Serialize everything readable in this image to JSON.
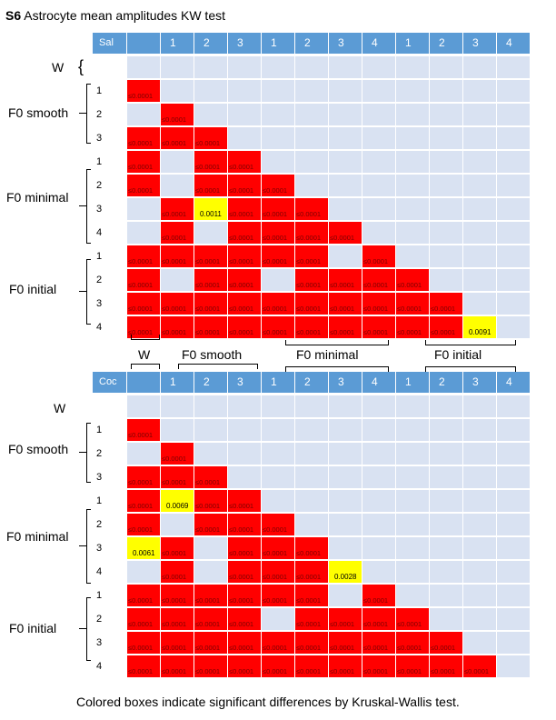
{
  "title": {
    "bold": "S6",
    "text": "Astrocyte mean amplitudes KW test"
  },
  "footnote": "Colored boxes indicate significant differences by Kruskal-Wallis test.",
  "group_labels": {
    "w": "W",
    "smooth": "F0 smooth",
    "minimal": "F0 minimal",
    "initial": "F0 initial"
  },
  "column_group_labels": {
    "w": "W",
    "smooth": "F0 smooth",
    "minimal": "F0 minimal",
    "initial": "F0 initial"
  },
  "colors": {
    "header": "#5b9bd5",
    "empty": "#d9e2f2",
    "significant": "#ff0000",
    "trend": "#ffff00"
  },
  "matrices": [
    {
      "corner": "Sal",
      "headers": [
        "",
        "1",
        "2",
        "3",
        "1",
        "2",
        "3",
        "4",
        "1",
        "2",
        "3",
        "4"
      ],
      "rows": [
        {
          "label": "",
          "cells": [
            "",
            "",
            "",
            "",
            "",
            "",
            "",
            "",
            "",
            "",
            "",
            ""
          ]
        },
        {
          "label": "1",
          "cells": [
            "R",
            "",
            "",
            "",
            "",
            "",
            "",
            "",
            "",
            "",
            "",
            ""
          ]
        },
        {
          "label": "2",
          "cells": [
            "",
            "R",
            "",
            "",
            "",
            "",
            "",
            "",
            "",
            "",
            "",
            ""
          ]
        },
        {
          "label": "3",
          "cells": [
            "R",
            "R",
            "R",
            "",
            "",
            "",
            "",
            "",
            "",
            "",
            "",
            ""
          ]
        },
        {
          "label": "1",
          "cells": [
            "R",
            "",
            "R",
            "R",
            "",
            "",
            "",
            "",
            "",
            "",
            "",
            ""
          ]
        },
        {
          "label": "2",
          "cells": [
            "R",
            "",
            "R",
            "R",
            "R",
            "",
            "",
            "",
            "",
            "",
            "",
            ""
          ]
        },
        {
          "label": "3",
          "cells": [
            "",
            "R",
            "Y:0.0011",
            "R",
            "R",
            "R",
            "",
            "",
            "",
            "",
            "",
            ""
          ]
        },
        {
          "label": "4",
          "cells": [
            "",
            "R",
            "",
            "R",
            "R",
            "R",
            "R",
            "",
            "",
            "",
            "",
            ""
          ]
        },
        {
          "label": "1",
          "cells": [
            "R",
            "R",
            "R",
            "R",
            "R",
            "R",
            "",
            "R",
            "",
            "",
            "",
            ""
          ]
        },
        {
          "label": "2",
          "cells": [
            "R",
            "",
            "R",
            "R",
            "",
            "R",
            "R",
            "R",
            "R",
            "",
            "",
            ""
          ]
        },
        {
          "label": "3",
          "cells": [
            "R",
            "R",
            "R",
            "R",
            "R",
            "R",
            "R",
            "R",
            "R",
            "R",
            "",
            ""
          ]
        },
        {
          "label": "4",
          "cells": [
            "R",
            "R",
            "R",
            "R",
            "R",
            "R",
            "R",
            "R",
            "R",
            "R",
            "Y:0.0091",
            ""
          ]
        }
      ]
    },
    {
      "corner": "Coc",
      "headers": [
        "",
        "1",
        "2",
        "3",
        "1",
        "2",
        "3",
        "4",
        "1",
        "2",
        "3",
        "4"
      ],
      "rows": [
        {
          "label": "",
          "cells": [
            "",
            "",
            "",
            "",
            "",
            "",
            "",
            "",
            "",
            "",
            "",
            ""
          ]
        },
        {
          "label": "1",
          "cells": [
            "R",
            "",
            "",
            "",
            "",
            "",
            "",
            "",
            "",
            "",
            "",
            ""
          ]
        },
        {
          "label": "2",
          "cells": [
            "",
            "R",
            "",
            "",
            "",
            "",
            "",
            "",
            "",
            "",
            "",
            ""
          ]
        },
        {
          "label": "3",
          "cells": [
            "R",
            "R",
            "R",
            "",
            "",
            "",
            "",
            "",
            "",
            "",
            "",
            ""
          ]
        },
        {
          "label": "1",
          "cells": [
            "R",
            "Y:0.0069",
            "R",
            "R",
            "",
            "",
            "",
            "",
            "",
            "",
            "",
            ""
          ]
        },
        {
          "label": "2",
          "cells": [
            "R",
            "",
            "R",
            "R",
            "R",
            "",
            "",
            "",
            "",
            "",
            "",
            ""
          ]
        },
        {
          "label": "3",
          "cells": [
            "Y:0.0061",
            "R",
            "",
            "R",
            "R",
            "R",
            "",
            "",
            "",
            "",
            "",
            ""
          ]
        },
        {
          "label": "4",
          "cells": [
            "",
            "R",
            "",
            "R",
            "R",
            "R",
            "Y:0.0028",
            "",
            "",
            "",
            "",
            ""
          ]
        },
        {
          "label": "1",
          "cells": [
            "R",
            "R",
            "R",
            "R",
            "R",
            "R",
            "",
            "R",
            "",
            "",
            "",
            ""
          ]
        },
        {
          "label": "2",
          "cells": [
            "R",
            "R",
            "R",
            "R",
            "",
            "R",
            "R",
            "R",
            "R",
            "",
            "",
            ""
          ]
        },
        {
          "label": "3",
          "cells": [
            "R",
            "R",
            "R",
            "R",
            "R",
            "R",
            "R",
            "R",
            "R",
            "R",
            "",
            ""
          ]
        },
        {
          "label": "4",
          "cells": [
            "R",
            "R",
            "R",
            "R",
            "R",
            "R",
            "R",
            "R",
            "R",
            "R",
            "R",
            ""
          ]
        }
      ]
    }
  ],
  "significant_value_label": "≤0.0001"
}
